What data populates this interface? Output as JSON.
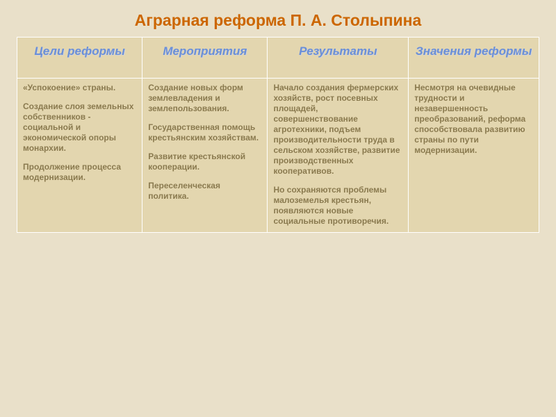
{
  "colors": {
    "slide_bg": "#e9e0c9",
    "title_color": "#cc6600",
    "header_bg": "#e3d6af",
    "header_text": "#6a8fd8",
    "header_shadow": "#d4d4d4",
    "cell_bg": "#e3d6af",
    "cell_text": "#8a7a4f",
    "border_color": "#ffffff",
    "title_fontsize": "23px",
    "header_fontsize": "17px",
    "cell_fontsize": "12px",
    "col_widths": [
      "24%",
      "24%",
      "27%",
      "25%"
    ]
  },
  "title": "Аграрная реформа П. А. Столыпина",
  "headers": [
    "Цели реформы",
    "Мероприятия",
    "Результаты",
    "Значения реформы"
  ],
  "cells": {
    "c0": [
      "«Успокоение» страны.",
      "Создание слоя земельных собственников - социальной и экономической опоры монархии.",
      "Продолжение процесса модернизации."
    ],
    "c1": [
      "Создание новых форм землевладения и землепользования.",
      "Государственная помощь крестьянским хозяйствам.",
      "Развитие крестьянской кооперации.",
      "Переселенческая политика."
    ],
    "c2": [
      "Начало создания фермерских хозяйств, рост посевных площадей, совершенствование агротехники, подъем производительности труда в сельском хозяйстве, развитие производственных кооперативов.",
      "Но сохраняются проблемы малоземелья крестьян, появляются новые социальные противоречия."
    ],
    "c3": [
      "Несмотря на очевидные трудности и незавершенность преобразований, реформа способствовала развитию страны по пути модернизации."
    ]
  }
}
